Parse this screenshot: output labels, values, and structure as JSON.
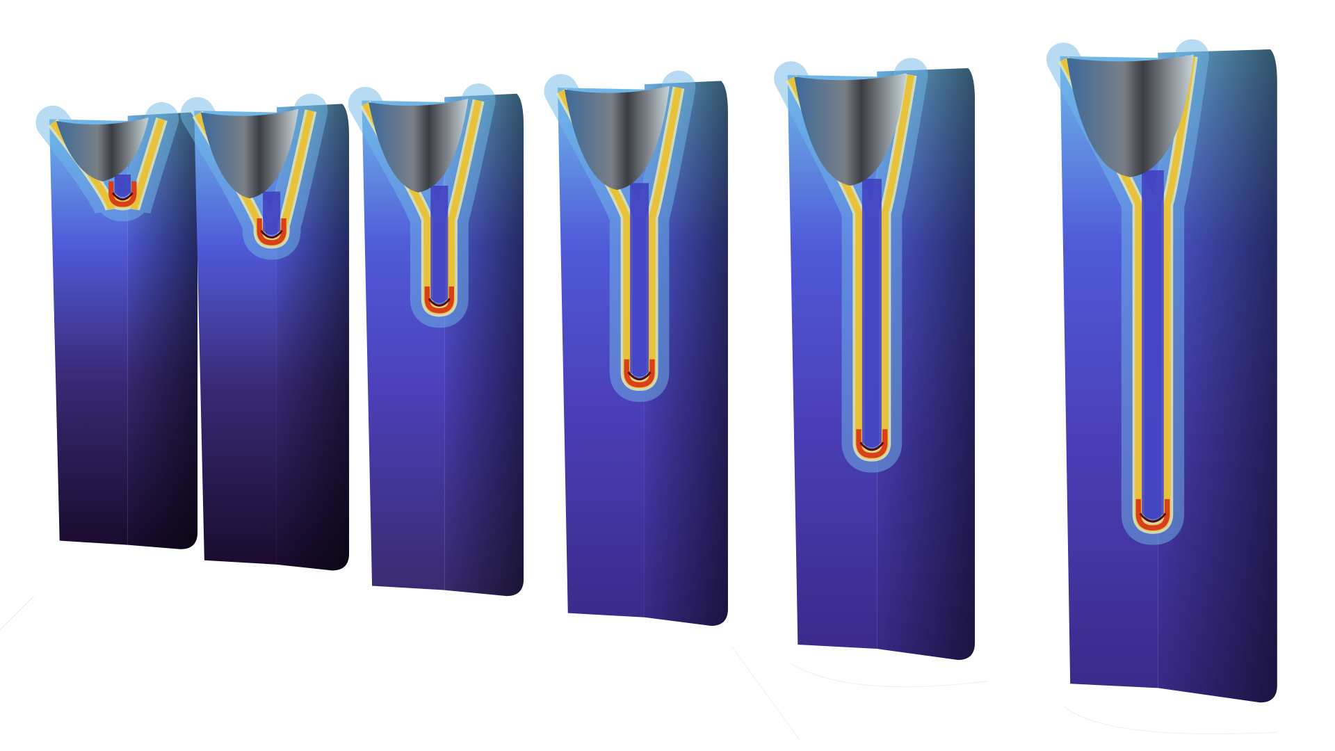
{
  "scene": {
    "background": "#ffffff",
    "panel_count": 6,
    "colormap": [
      "#1a0b2e",
      "#3b2a8a",
      "#4f5ad8",
      "#6fb8e8",
      "#e8e8b0",
      "#e8c23a",
      "#d8401c",
      "#5a0a0a"
    ],
    "meniscus_color": "#7a7f86"
  }
}
